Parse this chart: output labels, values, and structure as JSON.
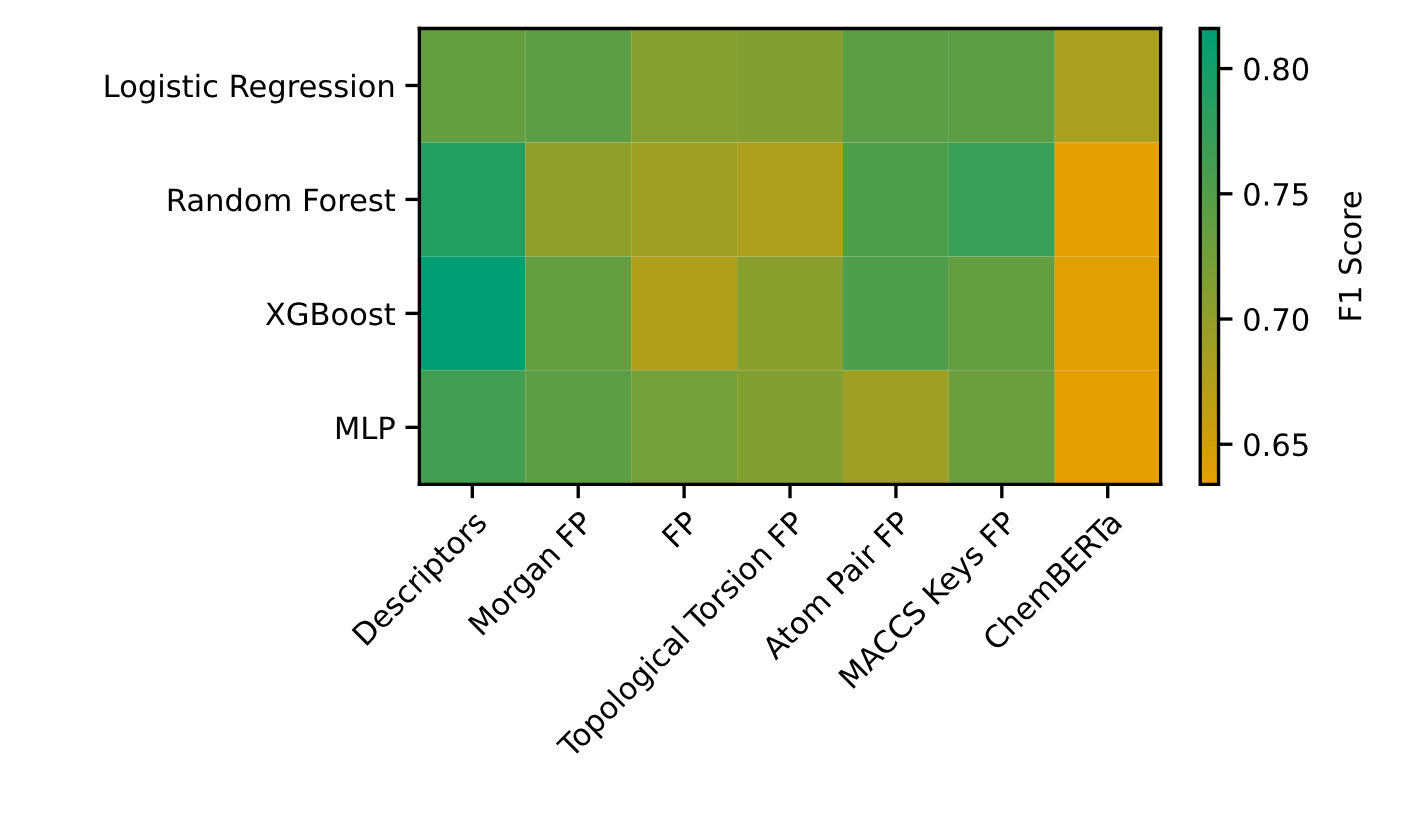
{
  "chart_data": {
    "type": "heatmap",
    "categories": [
      "Descriptors",
      "Morgan FP",
      "FP",
      "Topological Torsion FP",
      "Atom Pair FP",
      "MACCS Keys FP",
      "ChemBERTa"
    ],
    "y_categories": [
      "Logistic Regression",
      "Random Forest",
      "XGBoost",
      "MLP"
    ],
    "cells": [
      [
        0.737,
        0.743,
        0.71,
        0.712,
        0.743,
        0.743,
        0.681
      ],
      [
        0.789,
        0.704,
        0.691,
        0.679,
        0.754,
        0.771,
        0.634
      ],
      [
        0.816,
        0.737,
        0.677,
        0.707,
        0.754,
        0.736,
        0.637
      ],
      [
        0.764,
        0.743,
        0.723,
        0.713,
        0.692,
        0.732,
        0.636
      ]
    ],
    "clabel": "F1 Score",
    "clim": [
      0.634,
      0.816
    ],
    "cticks": [
      0.65,
      {
        "value": 0.7,
        "label": "0.70"
      },
      0.75,
      {
        "value": 0.8,
        "label": "0.80"
      }
    ],
    "colors": [
      "#e69f00",
      "#009e73"
    ]
  }
}
